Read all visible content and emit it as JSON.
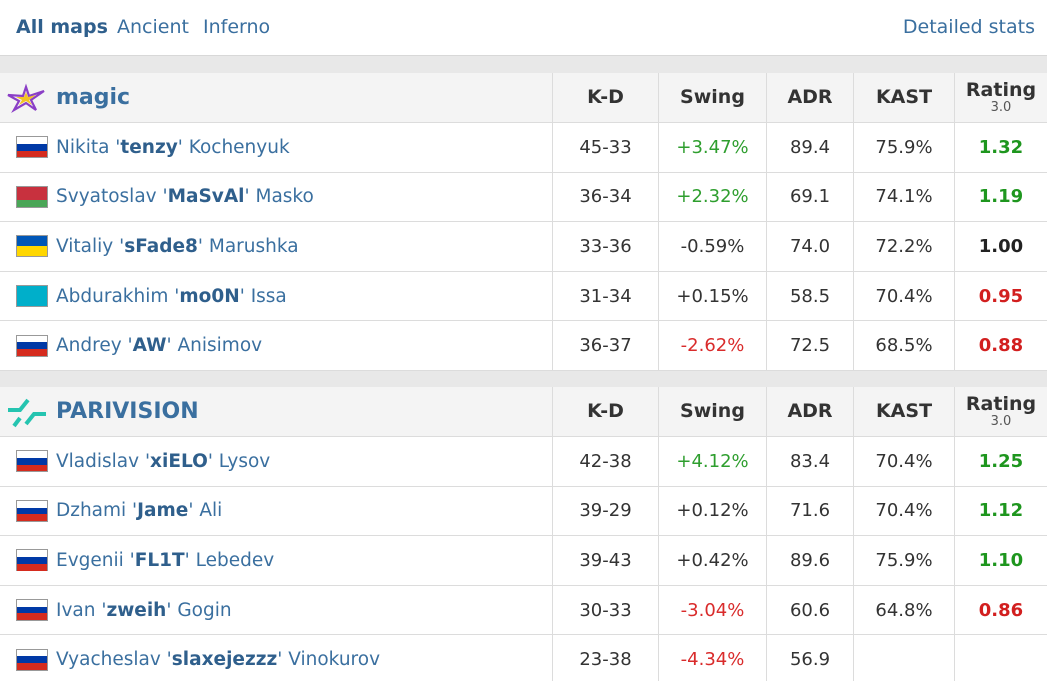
{
  "tabs": [
    "All maps",
    "Ancient",
    "Inferno"
  ],
  "detailed_stats": "Detailed stats",
  "teams": [
    {
      "name": "magic",
      "columns": [
        "K-D",
        "Swing",
        "ADR",
        "KAST",
        "Rating"
      ],
      "rating_version": "3.0",
      "players": [
        {
          "first": "Nikita '",
          "nick": "tenzy",
          "last": "' Kochenyuk",
          "flag": [
            "#ffffff",
            "#0039a6",
            "#d52b1e"
          ],
          "kd": "45-33",
          "swing": "+3.47%",
          "swing_color": "#2e9e2e",
          "adr": "89.4",
          "kast": "75.9%",
          "rating": "1.32",
          "rating_color": "#1e961e"
        },
        {
          "first": "Svyatoslav '",
          "nick": "MaSvAl",
          "last": "' Masko",
          "flag": [
            "#c8313e",
            "#c8313e",
            "#4aa657"
          ],
          "kd": "36-34",
          "swing": "+2.32%",
          "swing_color": "#2e9e2e",
          "adr": "69.1",
          "kast": "74.1%",
          "rating": "1.19",
          "rating_color": "#1e961e"
        },
        {
          "first": "Vitaliy '",
          "nick": "sFade8",
          "last": "' Marushka",
          "flag": [
            "#0057b7",
            "#ffd700"
          ],
          "kd": "33-36",
          "swing": "-0.59%",
          "swing_color": "#333333",
          "adr": "74.0",
          "kast": "72.2%",
          "rating": "1.00",
          "rating_color": "#222222"
        },
        {
          "first": "Abdurakhim '",
          "nick": "mo0N",
          "last": "' Issa",
          "flag": [
            "#00afca"
          ],
          "kd": "31-34",
          "swing": "+0.15%",
          "swing_color": "#333333",
          "adr": "58.5",
          "kast": "70.4%",
          "rating": "0.95",
          "rating_color": "#d21f1f"
        },
        {
          "first": "Andrey '",
          "nick": "AW",
          "last": "' Anisimov",
          "flag": [
            "#ffffff",
            "#0039a6",
            "#d52b1e"
          ],
          "kd": "36-37",
          "swing": "-2.62%",
          "swing_color": "#d92b2b",
          "adr": "72.5",
          "kast": "68.5%",
          "rating": "0.88",
          "rating_color": "#d21f1f"
        }
      ]
    },
    {
      "name": "PARIVISION",
      "columns": [
        "K-D",
        "Swing",
        "ADR",
        "KAST",
        "Rating"
      ],
      "rating_version": "3.0",
      "players": [
        {
          "first": "Vladislav '",
          "nick": "xiELO",
          "last": "' Lysov",
          "flag": [
            "#ffffff",
            "#0039a6",
            "#d52b1e"
          ],
          "kd": "42-38",
          "swing": "+4.12%",
          "swing_color": "#2e9e2e",
          "adr": "83.4",
          "kast": "70.4%",
          "rating": "1.25",
          "rating_color": "#1e961e"
        },
        {
          "first": "Dzhami '",
          "nick": "Jame",
          "last": "' Ali",
          "flag": [
            "#ffffff",
            "#0039a6",
            "#d52b1e"
          ],
          "kd": "39-29",
          "swing": "+0.12%",
          "swing_color": "#333333",
          "adr": "71.6",
          "kast": "70.4%",
          "rating": "1.12",
          "rating_color": "#1e961e"
        },
        {
          "first": "Evgenii '",
          "nick": "FL1T",
          "last": "' Lebedev",
          "flag": [
            "#ffffff",
            "#0039a6",
            "#d52b1e"
          ],
          "kd": "39-43",
          "swing": "+0.42%",
          "swing_color": "#333333",
          "adr": "89.6",
          "kast": "75.9%",
          "rating": "1.10",
          "rating_color": "#1e961e"
        },
        {
          "first": "Ivan '",
          "nick": "zweih",
          "last": "' Gogin",
          "flag": [
            "#ffffff",
            "#0039a6",
            "#d52b1e"
          ],
          "kd": "30-33",
          "swing": "-3.04%",
          "swing_color": "#d92b2b",
          "adr": "60.6",
          "kast": "64.8%",
          "rating": "0.86",
          "rating_color": "#d21f1f"
        },
        {
          "first": "Vyacheslav '",
          "nick": "slaxejezzz",
          "last": "' Vinokurov",
          "flag": [
            "#ffffff",
            "#0039a6",
            "#d52b1e"
          ],
          "kd": "23-38",
          "swing": "-4.34%",
          "swing_color": "#d92b2b",
          "adr": "56.9"
        }
      ]
    }
  ]
}
